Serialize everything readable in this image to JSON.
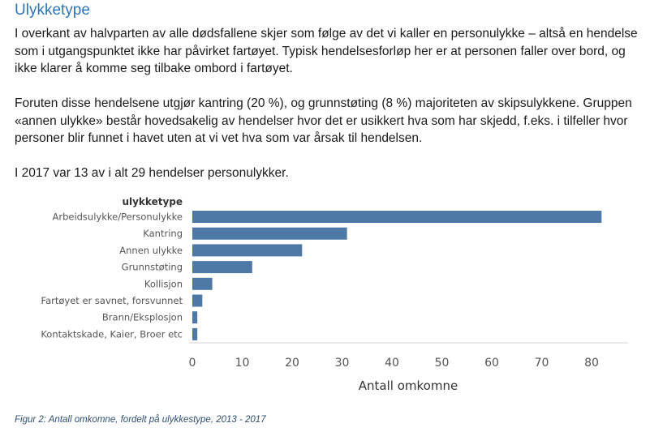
{
  "document": {
    "heading": "Ulykketype",
    "paragraphs": [
      "I overkant av halvparten av alle dødsfallene skjer som følge av det vi kaller en personulykke – altså en hendelse som i utgangspunktet ikke har påvirket fartøyet. Typisk hendelsesforløp her er at personen faller over bord, og ikke klarer å komme seg tilbake ombord i fartøyet.",
      "Foruten disse hendelsene utgjør kantring (20 %), og grunnstøting (8 %) majoriteten av skipsulykkene. Gruppen «annen ulykke» består hovedsakelig av hendelser hvor det er usikkert hva som har skjedd, f.eks. i tilfeller hvor personer blir funnet i havet uten at vi vet hva som var årsak til hendelsen.",
      "I 2017 var 13 av i alt 29 hendelser personulykker."
    ],
    "caption": "Figur 2: Antall omkomne, fordelt på ulykkestype, 2013 - 2017"
  },
  "chart_data": {
    "type": "bar",
    "orientation": "horizontal",
    "category_header": "ulykketype",
    "categories": [
      "Arbeidsulykke/Personulykke",
      "Kantring",
      "Annen ulykke",
      "Grunnstøting",
      "Kollisjon",
      "Fartøyet er savnet, forsvunnet",
      "Brann/Eksplosjon",
      "Kontaktskade, Kaier, Broer etc"
    ],
    "values": [
      82,
      31,
      22,
      12,
      4,
      2,
      1,
      1
    ],
    "xlabel": "Antall omkomne",
    "xlim": [
      0,
      88
    ],
    "xticks": [
      0,
      10,
      20,
      30,
      40,
      50,
      60,
      70,
      80
    ],
    "bar_color": "#4e79a7",
    "grid": false
  }
}
